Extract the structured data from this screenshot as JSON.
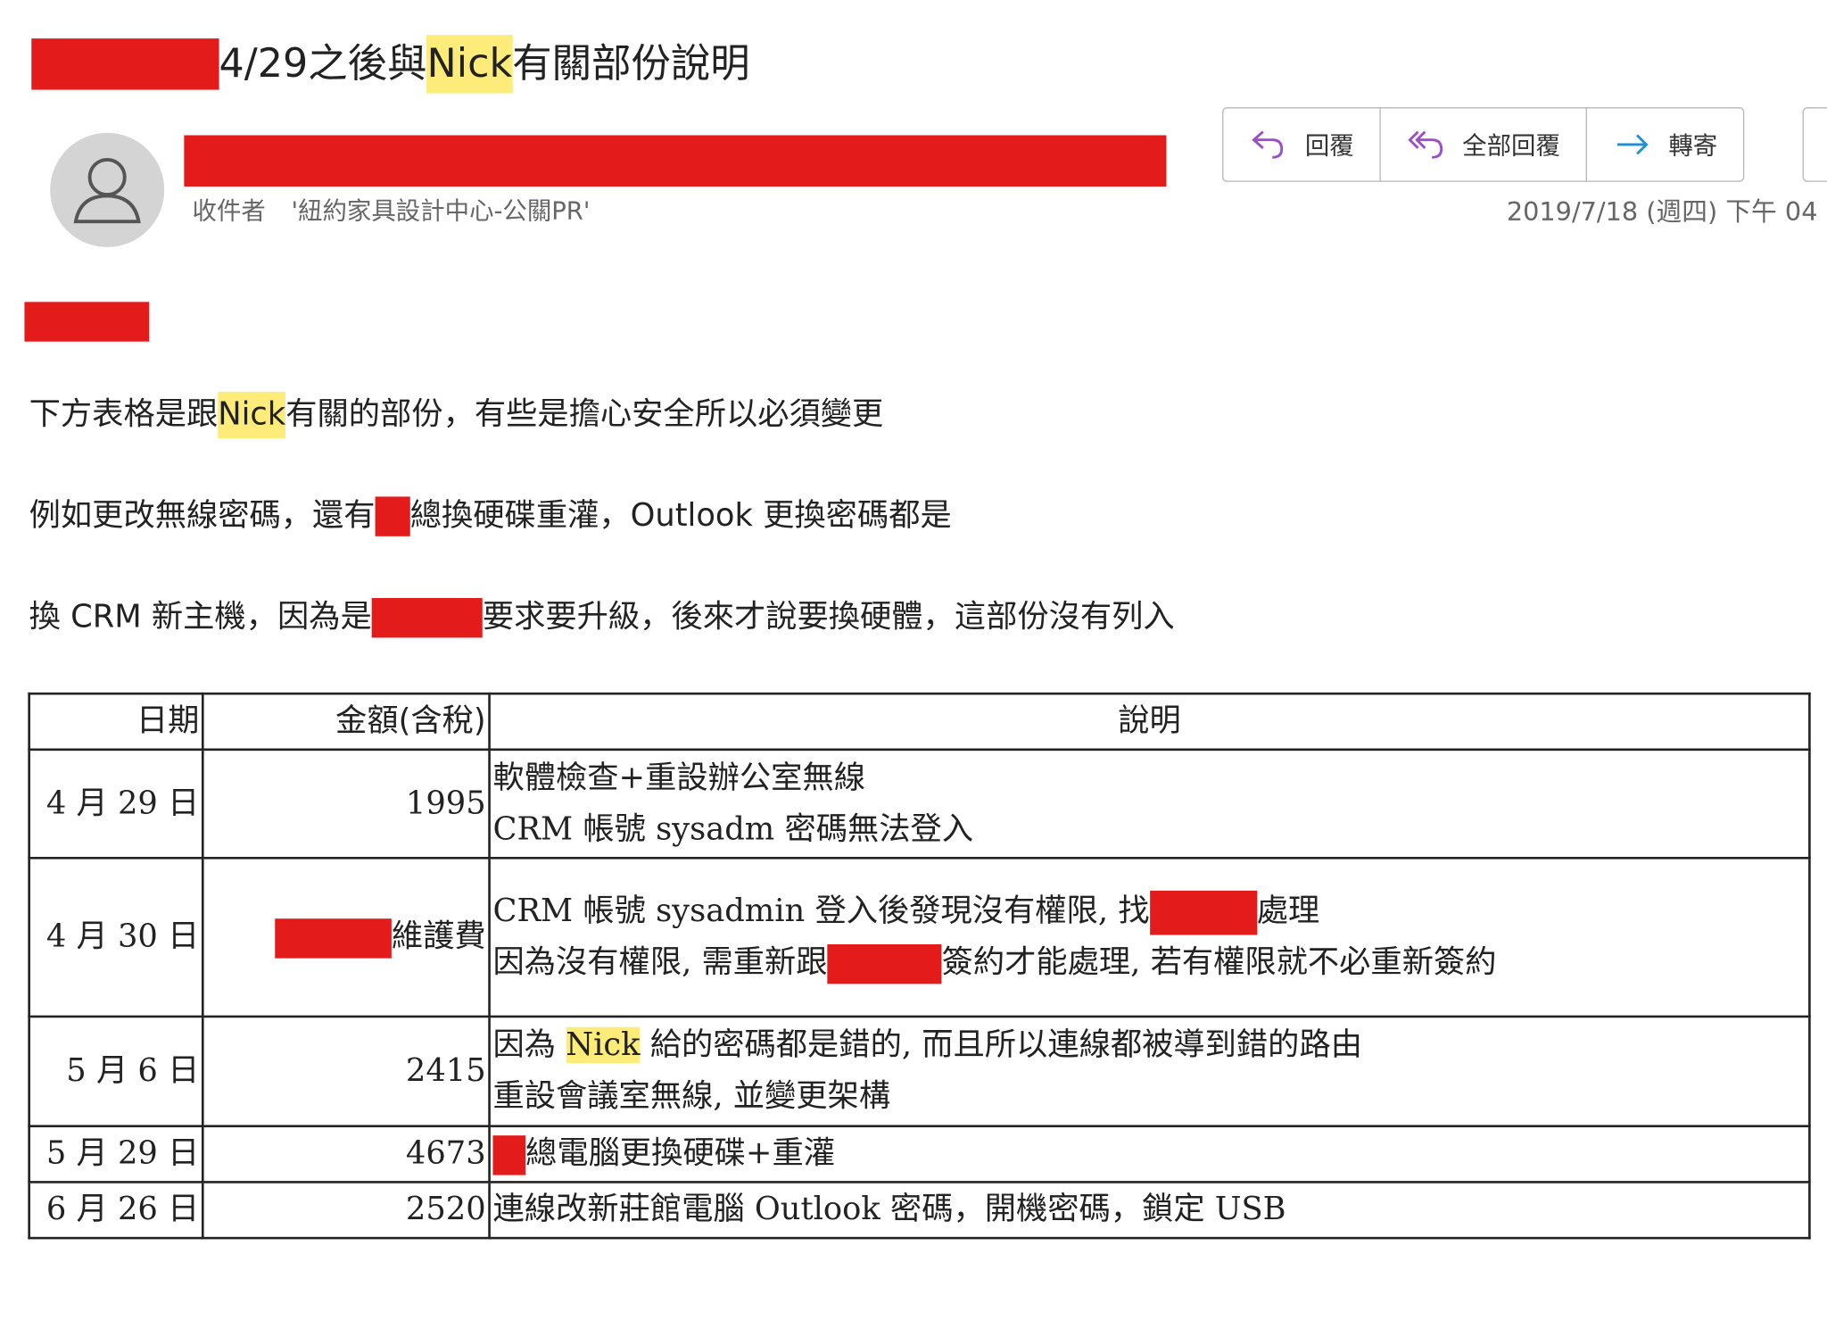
{
  "email": {
    "subject": {
      "text_before_highlight": "4/29之後與",
      "highlight": "Nick",
      "text_after": "有關部份說明"
    },
    "recipient_label": "收件者",
    "recipient": "'紐約家具設計中心-公關PR'",
    "date": "2019/7/18 (週四) 下午 04",
    "actions": [
      {
        "label": "回覆",
        "icon": "reply-icon",
        "color": "#9b4dca"
      },
      {
        "label": "全部回覆",
        "icon": "reply-all-icon",
        "color": "#9b4dca"
      },
      {
        "label": "轉寄",
        "icon": "forward-icon",
        "color": "#1e8fd8"
      }
    ]
  },
  "body": {
    "p1": {
      "before": "下方表格是跟 ",
      "highlight": "Nick",
      "after": " 有關的部份，有些是擔心安全所以必須變更"
    },
    "p2": {
      "before": "例如更改無線密碼，還有",
      "after": "總換硬碟重灌，Outlook 更換密碼都是"
    },
    "p3": {
      "before": "換 CRM 新主機，因為是",
      "after": "要求要升級，後來才說要換硬體，這部份沒有列入"
    }
  },
  "table": {
    "headers": [
      "日期",
      "金額(含稅)",
      "說明"
    ],
    "rows": [
      {
        "date": "4 月 29 日",
        "amount": "1995",
        "lines": [
          "軟體檢查+重設辦公室無線",
          "CRM 帳號 sysadm 密碼無法登入"
        ]
      },
      {
        "date": "4 月 30 日",
        "amount": "維護費",
        "line1a": "CRM 帳號 sysadmin 登入後發現沒有權限, 找",
        "line1b": "處理",
        "line2a": "因為沒有權限, 需重新跟",
        "line2b": "簽約才能處理, 若有權限就不必重新簽約"
      },
      {
        "date": "5 月 6 日",
        "amount": "2415",
        "line1a": "因為 ",
        "highlight": "Nick",
        "line1b": " 給的密碼都是錯的, 而且所以連線都被導到錯的路由",
        "line2": "重設會議室無線, 並變更架構"
      },
      {
        "date": "5 月 29 日",
        "amount": "4673",
        "line1": "總電腦更換硬碟+重灌"
      },
      {
        "date": "6 月 26 日",
        "amount": "2520",
        "line1": "連線改新莊館電腦 Outlook 密碼，開機密碼，鎖定 USB"
      }
    ]
  },
  "colors": {
    "redaction": "#e41b1b",
    "highlight": "#fdeb7a"
  }
}
